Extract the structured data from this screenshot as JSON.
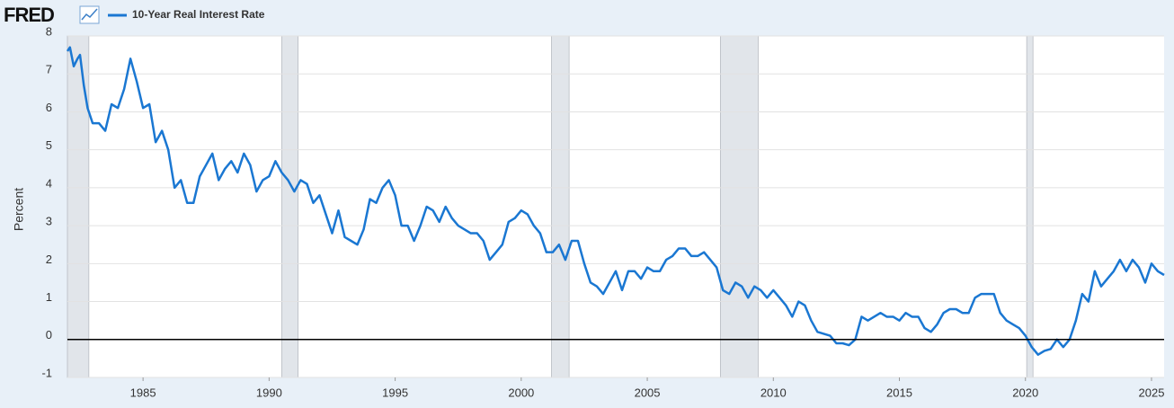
{
  "chart_data": {
    "type": "line",
    "source": "FRED",
    "ylabel": "Percent",
    "xlim": [
      1982,
      2025.5
    ],
    "ylim": [
      -1,
      8
    ],
    "xticks": [
      1985,
      1990,
      1995,
      2000,
      2005,
      2010,
      2015,
      2020,
      2025
    ],
    "yticks": [
      -1,
      0,
      1,
      2,
      3,
      4,
      5,
      6,
      7,
      8
    ],
    "grid": true,
    "recessions": [
      [
        1982.0,
        1982.85
      ],
      [
        1990.5,
        1991.15
      ],
      [
        2001.2,
        2001.9
      ],
      [
        2007.9,
        2009.4
      ],
      [
        2020.05,
        2020.3
      ]
    ],
    "x": [
      1982.0,
      1982.1,
      1982.25,
      1982.4,
      1982.5,
      1982.65,
      1982.8,
      1983.0,
      1983.25,
      1983.5,
      1983.75,
      1984.0,
      1984.25,
      1984.5,
      1984.75,
      1985.0,
      1985.25,
      1985.5,
      1985.75,
      1986.0,
      1986.25,
      1986.5,
      1986.75,
      1987.0,
      1987.25,
      1987.5,
      1987.75,
      1988.0,
      1988.25,
      1988.5,
      1988.75,
      1989.0,
      1989.25,
      1989.5,
      1989.75,
      1990.0,
      1990.25,
      1990.5,
      1990.75,
      1991.0,
      1991.25,
      1991.5,
      1991.75,
      1992.0,
      1992.25,
      1992.5,
      1992.75,
      1993.0,
      1993.25,
      1993.5,
      1993.75,
      1994.0,
      1994.25,
      1994.5,
      1994.75,
      1995.0,
      1995.25,
      1995.5,
      1995.75,
      1996.0,
      1996.25,
      1996.5,
      1996.75,
      1997.0,
      1997.25,
      1997.5,
      1997.75,
      1998.0,
      1998.25,
      1998.5,
      1998.75,
      1999.0,
      1999.25,
      1999.5,
      1999.75,
      2000.0,
      2000.25,
      2000.5,
      2000.75,
      2001.0,
      2001.25,
      2001.5,
      2001.75,
      2002.0,
      2002.25,
      2002.5,
      2002.75,
      2003.0,
      2003.25,
      2003.5,
      2003.75,
      2004.0,
      2004.25,
      2004.5,
      2004.75,
      2005.0,
      2005.25,
      2005.5,
      2005.75,
      2006.0,
      2006.25,
      2006.5,
      2006.75,
      2007.0,
      2007.25,
      2007.5,
      2007.75,
      2008.0,
      2008.25,
      2008.5,
      2008.75,
      2009.0,
      2009.25,
      2009.5,
      2009.75,
      2010.0,
      2010.25,
      2010.5,
      2010.75,
      2011.0,
      2011.25,
      2011.5,
      2011.75,
      2012.0,
      2012.25,
      2012.5,
      2012.75,
      2013.0,
      2013.25,
      2013.5,
      2013.75,
      2014.0,
      2014.25,
      2014.5,
      2014.75,
      2015.0,
      2015.25,
      2015.5,
      2015.75,
      2016.0,
      2016.25,
      2016.5,
      2016.75,
      2017.0,
      2017.25,
      2017.5,
      2017.75,
      2018.0,
      2018.25,
      2018.5,
      2018.75,
      2019.0,
      2019.25,
      2019.5,
      2019.75,
      2020.0,
      2020.25,
      2020.5,
      2020.75,
      2021.0,
      2021.25,
      2021.5,
      2021.75,
      2022.0,
      2022.25,
      2022.5,
      2022.75,
      2023.0,
      2023.25,
      2023.5,
      2023.75,
      2024.0,
      2024.25,
      2024.5,
      2024.75,
      2025.0,
      2025.25,
      2025.5
    ],
    "series": [
      {
        "name": "10-Year Real Interest Rate",
        "color": "#1a77d2",
        "values": [
          7.6,
          7.7,
          7.2,
          7.4,
          7.5,
          6.7,
          6.1,
          5.7,
          5.7,
          5.5,
          6.2,
          6.1,
          6.6,
          7.4,
          6.8,
          6.1,
          6.2,
          5.2,
          5.5,
          5.0,
          4.0,
          4.2,
          3.6,
          3.6,
          4.3,
          4.6,
          4.9,
          4.2,
          4.5,
          4.7,
          4.4,
          4.9,
          4.6,
          3.9,
          4.2,
          4.3,
          4.7,
          4.4,
          4.2,
          3.9,
          4.2,
          4.1,
          3.6,
          3.8,
          3.3,
          2.8,
          3.4,
          2.7,
          2.6,
          2.5,
          2.9,
          3.7,
          3.6,
          4.0,
          4.2,
          3.8,
          3.0,
          3.0,
          2.6,
          3.0,
          3.5,
          3.4,
          3.1,
          3.5,
          3.2,
          3.0,
          2.9,
          2.8,
          2.8,
          2.6,
          2.1,
          2.3,
          2.5,
          3.1,
          3.2,
          3.4,
          3.3,
          3.0,
          2.8,
          2.3,
          2.3,
          2.5,
          2.1,
          2.6,
          2.6,
          2.0,
          1.5,
          1.4,
          1.2,
          1.5,
          1.8,
          1.3,
          1.8,
          1.8,
          1.6,
          1.9,
          1.8,
          1.8,
          2.1,
          2.2,
          2.4,
          2.4,
          2.2,
          2.2,
          2.3,
          2.1,
          1.9,
          1.3,
          1.2,
          1.5,
          1.4,
          1.1,
          1.4,
          1.3,
          1.1,
          1.3,
          1.1,
          0.9,
          0.6,
          1.0,
          0.9,
          0.5,
          0.2,
          0.15,
          0.1,
          -0.1,
          -0.1,
          -0.15,
          0.0,
          0.6,
          0.5,
          0.6,
          0.7,
          0.6,
          0.6,
          0.5,
          0.7,
          0.6,
          0.6,
          0.3,
          0.2,
          0.4,
          0.7,
          0.8,
          0.8,
          0.7,
          0.7,
          1.1,
          1.2,
          1.2,
          1.2,
          0.7,
          0.5,
          0.4,
          0.3,
          0.1,
          -0.2,
          -0.4,
          -0.3,
          -0.25,
          0.0,
          -0.2,
          0.0,
          0.5,
          1.2,
          1.0,
          1.8,
          1.4,
          1.6,
          1.8,
          2.1,
          1.8,
          2.1,
          1.9,
          1.5,
          2.0,
          1.8,
          1.7
        ]
      }
    ]
  }
}
